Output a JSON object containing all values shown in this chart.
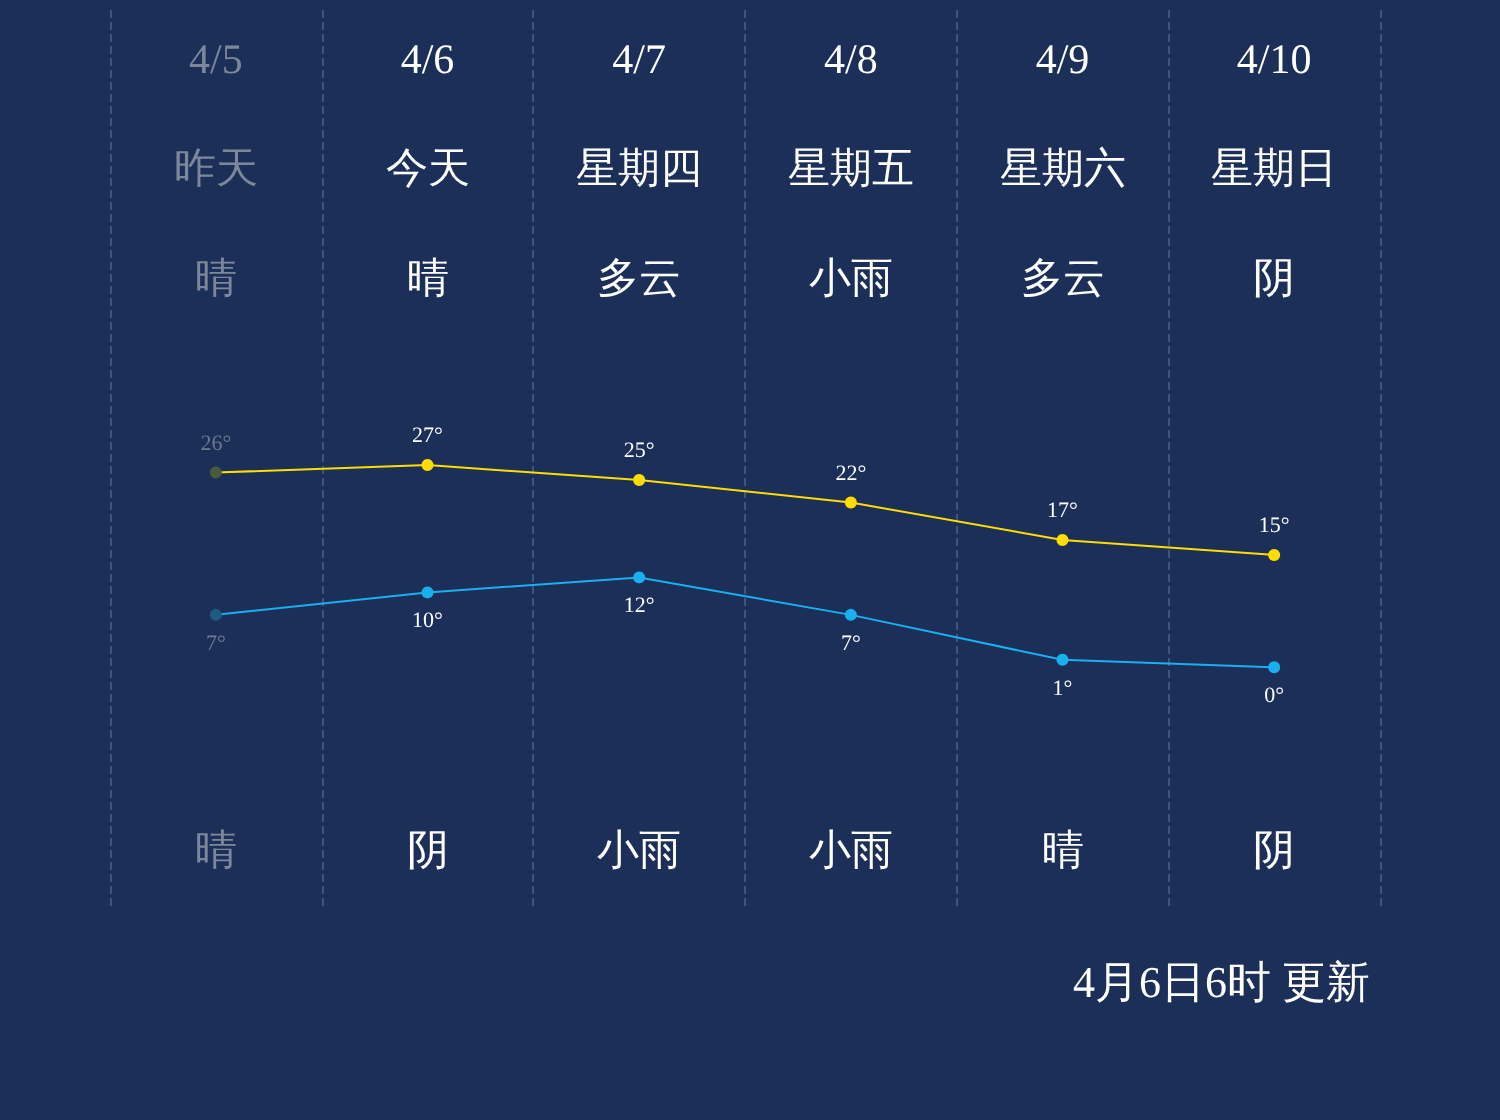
{
  "chart_data": {
    "type": "line",
    "categories": [
      "4/5",
      "4/6",
      "4/7",
      "4/8",
      "4/9",
      "4/10"
    ],
    "series": [
      {
        "color": "#ffdd00",
        "colors": [
          "#4a5a3e",
          "#ffdd00",
          "#ffdd00",
          "#ffdd00",
          "#ffdd00",
          "#ffdd00"
        ],
        "values": [
          26,
          27,
          25,
          22,
          17,
          15
        ],
        "value_labels": [
          "26°",
          "27°",
          "25°",
          "22°",
          "17°",
          "15°"
        ]
      },
      {
        "color": "#1ab0f0",
        "colors": [
          "#1f5a80",
          "#1ab0f0",
          "#1ab0f0",
          "#1ab0f0",
          "#1ab0f0",
          "#1ab0f0"
        ],
        "values": [
          7,
          10,
          12,
          7,
          1,
          0
        ],
        "value_labels": [
          "7°",
          "10°",
          "12°",
          "7°",
          "1°",
          "0°"
        ]
      }
    ],
    "annotations": [
      "昨天",
      "今天",
      "星期四",
      "星期五",
      "星期六",
      "星期日",
      "晴",
      "晴",
      "多云",
      "小雨",
      "多云",
      "阴",
      "晴",
      "阴",
      "小雨",
      "小雨",
      "晴",
      "阴",
      "4月6日6时 更新"
    ],
    "grid": "x",
    "marker": "circle",
    "line_style": "solid"
  }
}
